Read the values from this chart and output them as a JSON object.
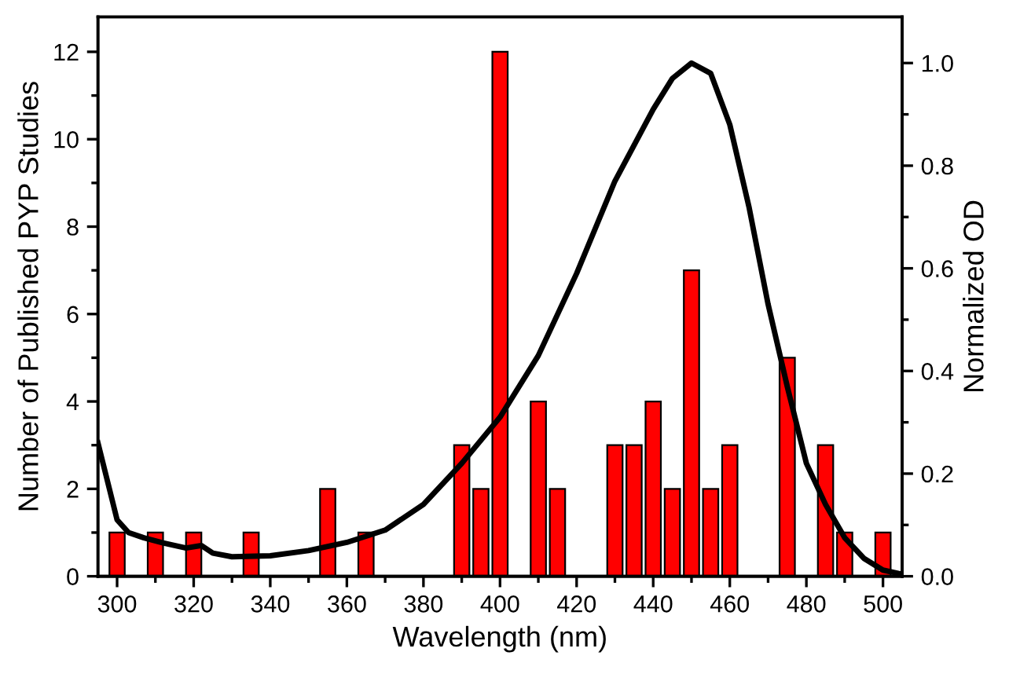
{
  "chart_data": {
    "type": "bar",
    "xlabel": "Wavelength (nm)",
    "ylabel": "Number of Published PYP Studies",
    "y2label": "Normalized OD",
    "xlim": [
      295,
      505
    ],
    "xticks": [
      300,
      320,
      340,
      360,
      380,
      400,
      420,
      440,
      460,
      480,
      500
    ],
    "ylim": [
      0,
      12.8
    ],
    "yticks": [
      0,
      2,
      4,
      6,
      8,
      10,
      12
    ],
    "y2lim": [
      0,
      1.09
    ],
    "y2ticks": [
      {
        "value": 0,
        "label": "0.0"
      },
      0.2,
      0.4,
      0.6,
      0.8,
      {
        "value": 1,
        "label": "1.0"
      }
    ],
    "grid": false,
    "legend": false,
    "series": [
      {
        "color": "#ff0000",
        "x": [
          300,
          310,
          320,
          335,
          355,
          365,
          390,
          395,
          400,
          410,
          415,
          430,
          435,
          440,
          445,
          450,
          455,
          460,
          475,
          485,
          490,
          500
        ],
        "values": [
          1,
          1,
          1,
          1,
          2,
          1,
          3,
          2,
          12,
          4,
          2,
          3,
          3,
          4,
          2,
          7,
          2,
          3,
          5,
          3,
          1,
          1
        ]
      },
      {
        "type": "line",
        "axis": "y2",
        "color": "#000000",
        "line_style": "solid",
        "marker": "none",
        "x": [
          295,
          298,
          300,
          303,
          307,
          312,
          318,
          322,
          325,
          330,
          340,
          350,
          360,
          370,
          380,
          390,
          400,
          410,
          420,
          430,
          440,
          445,
          450,
          455,
          460,
          465,
          470,
          475,
          480,
          485,
          490,
          495,
          500,
          505
        ],
        "values": [
          0.26,
          0.17,
          0.11,
          0.085,
          0.075,
          0.065,
          0.055,
          0.06,
          0.045,
          0.038,
          0.04,
          0.05,
          0.066,
          0.09,
          0.14,
          0.22,
          0.31,
          0.43,
          0.59,
          0.77,
          0.91,
          0.97,
          1.0,
          0.98,
          0.88,
          0.72,
          0.53,
          0.37,
          0.22,
          0.14,
          0.075,
          0.035,
          0.012,
          0.004
        ]
      }
    ]
  }
}
